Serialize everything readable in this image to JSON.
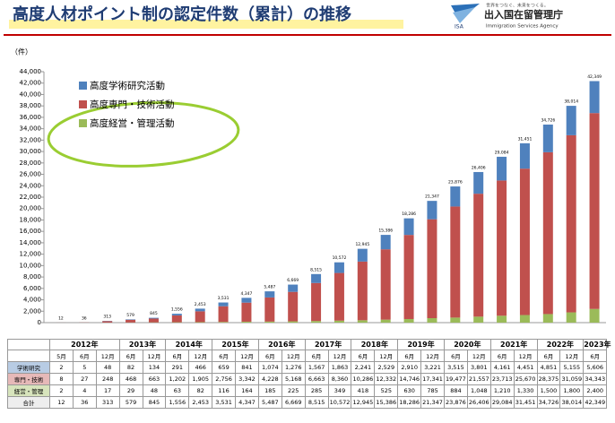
{
  "header": {
    "title": "高度人材ポイント制の認定件数（累計）の推移",
    "slogan": "世界をつなぐ、未来をつくる。",
    "agency": "出入国在留管理庁",
    "agency_en": "Immigration Services Agency",
    "logo": "ISA"
  },
  "chart_data": {
    "type": "bar",
    "stacked": true,
    "ylabel": "（件）",
    "categories": [
      "5月",
      "6月",
      "12月",
      "6月",
      "12月",
      "6月",
      "12月",
      "6月",
      "12月",
      "6月",
      "12月",
      "6月",
      "12月",
      "6月",
      "12月",
      "6月",
      "12月",
      "6月",
      "12月",
      "6月",
      "12月",
      "6月",
      "12月",
      "6月"
    ],
    "series": [
      {
        "name": "高度経営・管理活動",
        "color": "#9bbb59",
        "values": [
          2,
          4,
          17,
          29,
          48,
          63,
          82,
          116,
          164,
          185,
          225,
          285,
          349,
          418,
          525,
          630,
          785,
          884,
          1048,
          1210,
          1330,
          1500,
          1800,
          2400
        ]
      },
      {
        "name": "高度専門・技術活動",
        "color": "#c0504d",
        "values": [
          8,
          27,
          248,
          468,
          663,
          1202,
          1905,
          2756,
          3342,
          4228,
          5168,
          6663,
          8360,
          10286,
          12332,
          14746,
          17341,
          19477,
          21557,
          23713,
          25670,
          28375,
          31059,
          34343
        ]
      },
      {
        "name": "高度学術研究活動",
        "color": "#4f81bd",
        "values": [
          2,
          5,
          48,
          82,
          134,
          291,
          466,
          659,
          841,
          1074,
          1276,
          1567,
          1863,
          2241,
          2529,
          2910,
          3221,
          3515,
          3801,
          4161,
          4451,
          4851,
          5155,
          5606
        ]
      }
    ],
    "legend": "upper-left",
    "grid": false,
    "ylim": [
      0,
      44000
    ],
    "yticks": [
      0,
      {
        "value": 2000,
        "label": "2,000"
      },
      {
        "value": 4000,
        "label": "4,000"
      },
      {
        "value": 6000,
        "label": "6,000"
      },
      {
        "value": 8000,
        "label": "8,000"
      },
      {
        "value": 10000,
        "label": "10,000"
      },
      {
        "value": 12000,
        "label": "12,000"
      },
      {
        "value": 14000,
        "label": "14,000"
      },
      {
        "value": 16000,
        "label": "16,000"
      },
      {
        "value": 18000,
        "label": "18,000"
      },
      {
        "value": 20000,
        "label": "20,000"
      },
      {
        "value": 22000,
        "label": "22,000"
      },
      {
        "value": 24000,
        "label": "24,000"
      },
      {
        "value": 26000,
        "label": "26,000"
      },
      {
        "value": 28000,
        "label": "28,000"
      },
      {
        "value": 30000,
        "label": "30,000"
      },
      {
        "value": 32000,
        "label": "32,000"
      },
      {
        "value": 34000,
        "label": "34,000"
      },
      {
        "value": 36000,
        "label": "36,000"
      },
      {
        "value": 38000,
        "label": "38,000"
      },
      {
        "value": 40000,
        "label": "40,000"
      },
      {
        "value": 42000,
        "label": "42,000"
      },
      {
        "value": 44000,
        "label": "44,000"
      }
    ]
  },
  "table": {
    "years": [
      "2012年",
      "2013年",
      "2014年",
      "2015年",
      "2016年",
      "2017年",
      "2018年",
      "2019年",
      "2020年",
      "2021年",
      "2022年",
      "2023年"
    ],
    "rows": [
      {
        "label": "学術研究",
        "cells": [
          "2",
          "5",
          "48",
          "82",
          "134",
          "291",
          "466",
          "659",
          "841",
          "1,074",
          "1,276",
          "1,567",
          "1,863",
          "2,241",
          "2,529",
          "2,910",
          "3,221",
          "3,515",
          "3,801",
          "4,161",
          "4,451",
          "4,851",
          "5,155",
          "5,606"
        ]
      },
      {
        "label": "専門・技術",
        "cells": [
          "8",
          "27",
          "248",
          "468",
          "663",
          "1,202",
          "1,905",
          "2,756",
          "3,342",
          "4,228",
          "5,168",
          "6,663",
          "8,360",
          "10,286",
          "12,332",
          "14,746",
          "17,341",
          "19,477",
          "21,557",
          "23,713",
          "25,670",
          "28,375",
          "31,059",
          "34,343"
        ]
      },
      {
        "label": "経営・管理",
        "cells": [
          "2",
          "4",
          "17",
          "29",
          "48",
          "63",
          "82",
          "116",
          "164",
          "185",
          "225",
          "285",
          "349",
          "418",
          "525",
          "630",
          "785",
          "884",
          "1,048",
          "1,210",
          "1,330",
          "1,500",
          "1,800",
          "2,400"
        ]
      },
      {
        "label": "合計",
        "cells": [
          "12",
          "36",
          "313",
          "579",
          "845",
          "1,556",
          "2,453",
          "3,531",
          "4,347",
          "5,487",
          "6,669",
          "8,515",
          "10,572",
          "12,945",
          "15,386",
          "18,286",
          "21,347",
          "23,876",
          "26,406",
          "29,084",
          "31,451",
          "34,726",
          "38,014",
          "42,349"
        ]
      }
    ]
  }
}
